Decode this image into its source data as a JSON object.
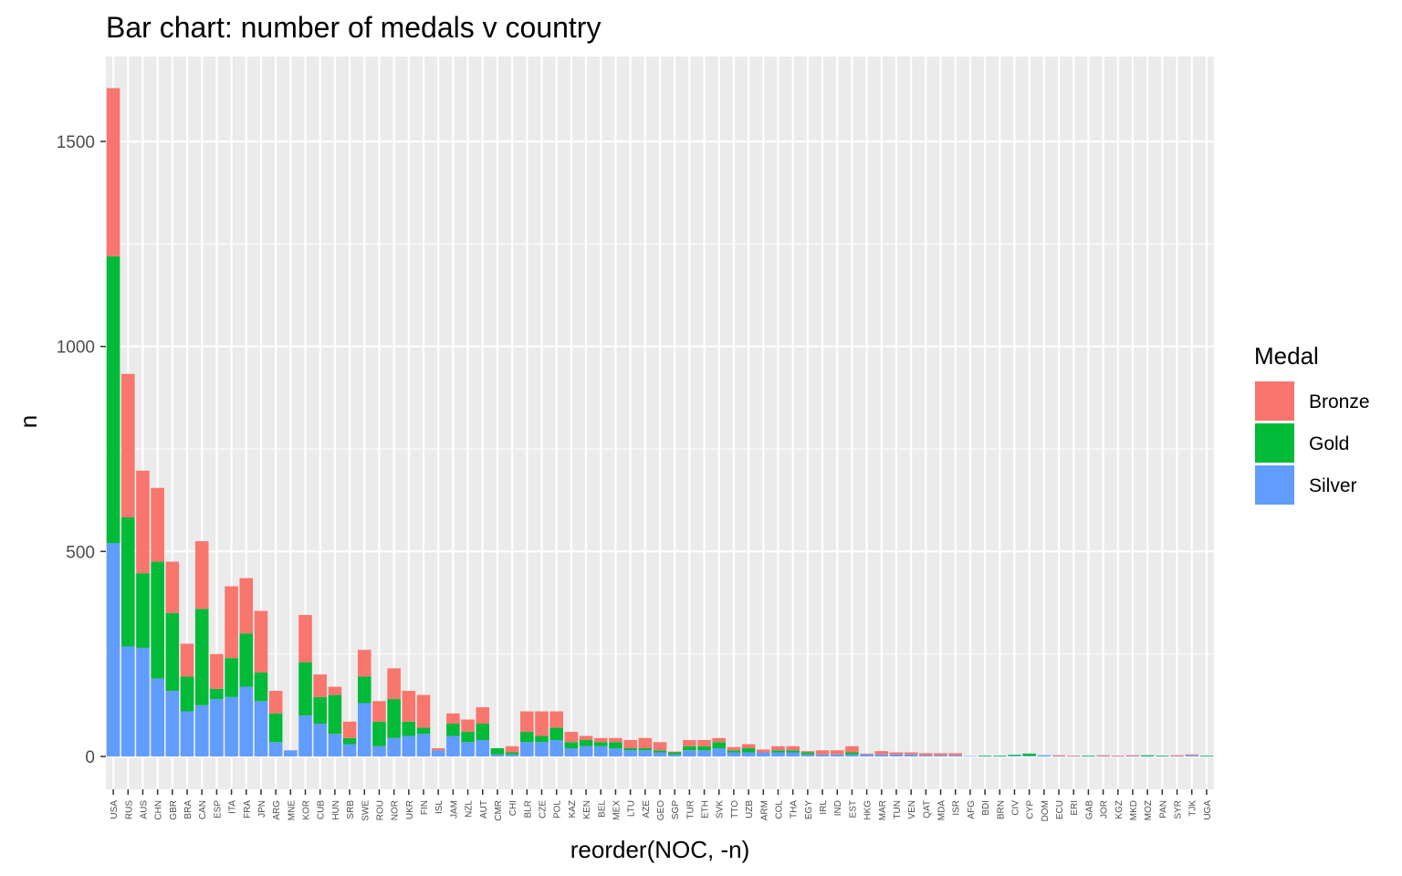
{
  "chart_data": {
    "type": "bar",
    "stacked": true,
    "title": "Bar chart: number of medals v country",
    "xlabel": "reorder(NOC, -n)",
    "ylabel": "n",
    "ylim": [
      0,
      1660
    ],
    "yticks": [
      0,
      500,
      1000,
      1500
    ],
    "grid": true,
    "legend": {
      "title": "Medal",
      "position": "right"
    },
    "categories": [
      "USA",
      "RUS",
      "AUS",
      "CHN",
      "GBR",
      "BRA",
      "CAN",
      "ESP",
      "ITA",
      "FRA",
      "JPN",
      "ARG",
      "MNE",
      "KOR",
      "CUB",
      "HUN",
      "SRB",
      "SWE",
      "ROU",
      "NOR",
      "UKR",
      "FIN",
      "ISL",
      "JAM",
      "NZL",
      "AUT",
      "CMR",
      "CHI",
      "BLR",
      "CZE",
      "POL",
      "KAZ",
      "KEN",
      "BEL",
      "MEX",
      "LTU",
      "AZE",
      "GEO",
      "SGP",
      "TUR",
      "ETH",
      "SVK",
      "TTO",
      "UZB",
      "ARM",
      "COL",
      "THA",
      "EGY",
      "IRL",
      "IND",
      "EST",
      "HKG",
      "MAR",
      "TUN",
      "VEN",
      "QAT",
      "MDA",
      "ISR",
      "AFG",
      "BDI",
      "BRN",
      "CIV",
      "CYP",
      "DOM",
      "ECU",
      "ERI",
      "GAB",
      "JOR",
      "KGZ",
      "MKD",
      "MOZ",
      "PAN",
      "SYR",
      "TJK",
      "UGA"
    ],
    "series": [
      {
        "name": "Silver",
        "color": "#619CFF",
        "values": [
          520,
          268,
          265,
          190,
          160,
          110,
          125,
          140,
          145,
          170,
          135,
          35,
          15,
          100,
          80,
          55,
          30,
          130,
          25,
          45,
          50,
          55,
          15,
          50,
          35,
          40,
          5,
          5,
          35,
          35,
          40,
          20,
          25,
          25,
          20,
          15,
          15,
          10,
          5,
          15,
          15,
          20,
          10,
          10,
          10,
          10,
          10,
          5,
          5,
          5,
          5,
          5,
          5,
          5,
          5,
          3,
          3,
          3,
          1,
          1,
          1,
          2,
          2,
          3,
          1,
          1,
          1,
          1,
          1,
          1,
          1,
          1,
          1,
          3,
          1
        ]
      },
      {
        "name": "Gold",
        "color": "#00BA38",
        "values": [
          700,
          315,
          182,
          285,
          190,
          85,
          235,
          25,
          95,
          130,
          70,
          70,
          0,
          130,
          65,
          95,
          15,
          65,
          60,
          95,
          35,
          15,
          0,
          30,
          25,
          40,
          15,
          5,
          25,
          15,
          30,
          15,
          15,
          10,
          15,
          5,
          5,
          5,
          5,
          10,
          10,
          15,
          5,
          10,
          0,
          5,
          5,
          5,
          0,
          0,
          5,
          0,
          0,
          0,
          0,
          0,
          0,
          0,
          0,
          1,
          1,
          2,
          5,
          0,
          0,
          0,
          1,
          0,
          0,
          0,
          2,
          1,
          0,
          0,
          1
        ]
      },
      {
        "name": "Bronze",
        "color": "#F8766D",
        "values": [
          410,
          350,
          250,
          180,
          125,
          80,
          165,
          85,
          175,
          135,
          150,
          55,
          0,
          115,
          55,
          20,
          40,
          65,
          50,
          75,
          75,
          80,
          5,
          25,
          30,
          40,
          0,
          15,
          50,
          60,
          40,
          25,
          10,
          10,
          10,
          20,
          25,
          20,
          2,
          15,
          15,
          10,
          8,
          10,
          7,
          10,
          10,
          3,
          10,
          10,
          15,
          2,
          8,
          5,
          5,
          5,
          5,
          5,
          0,
          0,
          0,
          0,
          0,
          0,
          2,
          1,
          0,
          2,
          1,
          2,
          0,
          0,
          2,
          2,
          0
        ]
      }
    ]
  }
}
